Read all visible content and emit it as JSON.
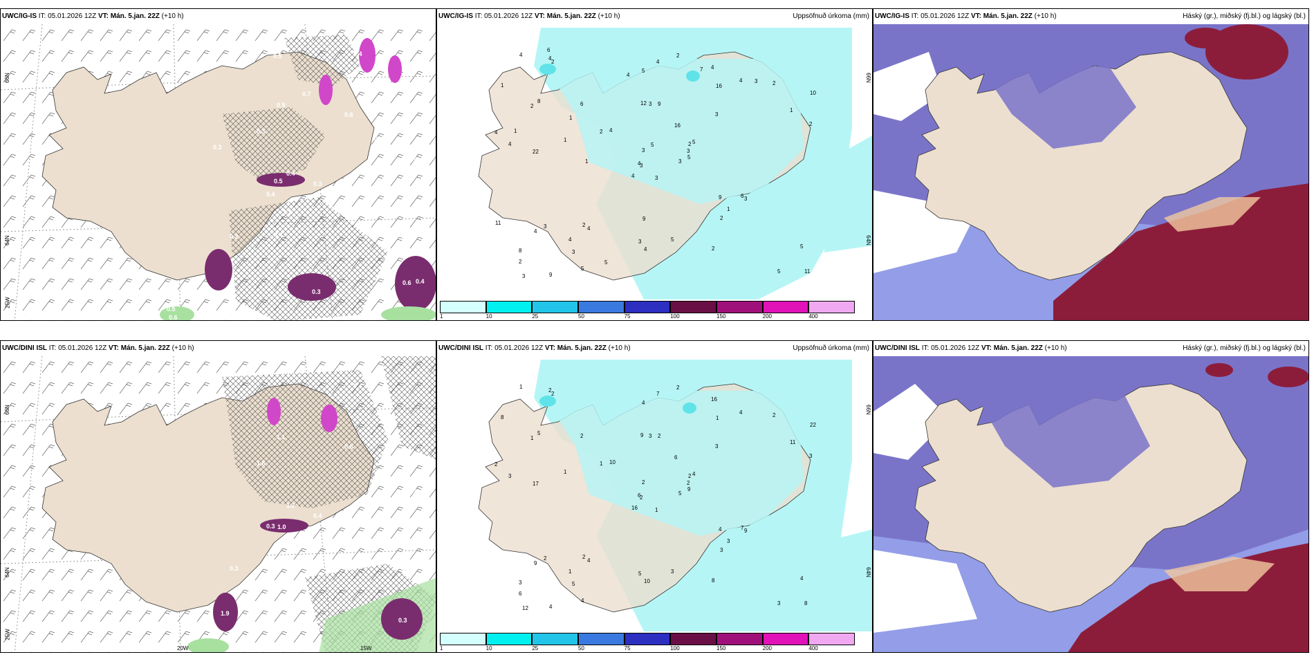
{
  "colors": {
    "land": "#ecdfcf",
    "precip_light": "#b6f5f5",
    "precip_mid": "#5fe3e8",
    "cloud_high": "#7a74c9",
    "cloud_mid": "#3b4dd6",
    "cloud_dense": "#8c1d3a",
    "purple_precip": "#d147c9",
    "green_precip": "#a8e0a0"
  },
  "rows": [
    {
      "model_label": "UWC/IG-IS",
      "it_label": "IT:",
      "it_value": "05.01.2026 12Z",
      "vt_label": "VT:",
      "vt_value": "Mán. 5.jan. 22Z",
      "lead": "(+10 h)",
      "precip_title": "Uppsöfnuð úrkoma (mm)",
      "cloud_title": "Háský (gr.), miðský (fj.bl.) og lágský (bl.)",
      "lat_labels": [
        "66N",
        "64N",
        "25W"
      ],
      "lat_labels_mid": [
        "66N",
        "64N"
      ],
      "precip_values": [
        "3",
        "2",
        "3",
        "8",
        "2",
        "4",
        "4",
        "9",
        "16",
        "3",
        "2",
        "11",
        "22",
        "10",
        "4",
        "3",
        "9",
        "12",
        "16",
        "3",
        "4",
        "2",
        "3",
        "3",
        "5",
        "3",
        "8",
        "5",
        "4",
        "9",
        "2",
        "4",
        "3",
        "3",
        "6",
        "4",
        "2",
        "5",
        "5",
        "6",
        "2",
        "2",
        "1",
        "2",
        "5",
        "4",
        "3",
        "3",
        "4",
        "5",
        "4",
        "1",
        "1",
        "1",
        "2",
        "4",
        "4",
        "4",
        "5",
        "2",
        "4",
        "1",
        "1",
        "1",
        "3",
        "6",
        "7",
        "4",
        "5",
        "11",
        "9",
        "5"
      ],
      "wind_values": [
        "0.9",
        "0.5",
        "0.6",
        "0.5",
        "0.4",
        "0.3",
        "0.6",
        "0.4",
        "0.3",
        "0.4",
        "0.3",
        "0.6",
        "0.8",
        "0.4",
        "0.2",
        "0.3",
        "0.4",
        "0.3",
        "0.5",
        "0.7",
        "0.6"
      ]
    },
    {
      "model_label": "UWC/DINI ISL",
      "it_label": "IT:",
      "it_value": "05.01.2026 12Z",
      "vt_label": "VT:",
      "vt_value": "Mán. 5.jan. 22Z",
      "lead": "(+10 h)",
      "precip_title": "Uppsöfnuð úrkoma (mm)",
      "cloud_title": "Háský (gr.), miðský (fj.bl.) og lágský (bl.)",
      "lat_labels": [
        "66N",
        "64N",
        "25W"
      ],
      "lat_labels_mid": [
        "66N",
        "64N"
      ],
      "lon_labels": [
        "20W",
        "15W"
      ],
      "precip_values": [
        "1",
        "1",
        "2",
        "3",
        "2",
        "4",
        "16",
        "2",
        "1",
        "5",
        "2",
        "8",
        "17",
        "22",
        "16",
        "3",
        "4",
        "9",
        "6",
        "2",
        "10",
        "6",
        "5",
        "3",
        "4",
        "9",
        "5",
        "4",
        "3",
        "4",
        "3",
        "6",
        "5",
        "2",
        "2",
        "4",
        "2",
        "3",
        "4",
        "7",
        "2",
        "1",
        "1",
        "3",
        "4",
        "2",
        "2",
        "12",
        "10",
        "9",
        "9",
        "11",
        "8",
        "3",
        "8",
        "1",
        "2",
        "1",
        "3",
        "2",
        "7"
      ],
      "wind_values": [
        "1.1",
        "1.3",
        "0.6",
        "1.3",
        "1.2",
        "1.0",
        "0.3",
        "0.4",
        "0.3",
        "1.9",
        "1.6",
        "0.7",
        "0.4",
        "0.9",
        "0.3",
        "0.4",
        "0.3"
      ]
    }
  ],
  "colorbar": {
    "ticks": [
      "1",
      "10",
      "25",
      "50",
      "75",
      "100",
      "150",
      "200",
      "400"
    ],
    "colors": [
      "#d4ffff",
      "#00f0f0",
      "#22c5e8",
      "#3a7ae0",
      "#2c2fc0",
      "#6a0f45",
      "#a0107a",
      "#e012b8",
      "#f0a8f0"
    ]
  }
}
